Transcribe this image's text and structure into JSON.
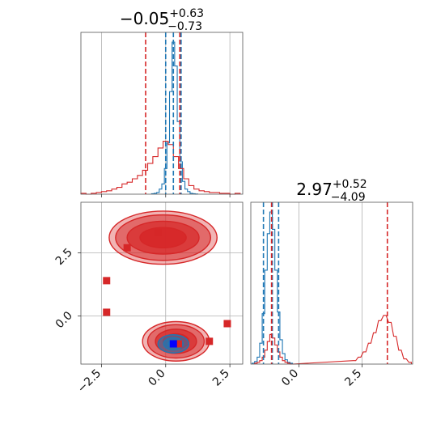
{
  "figure": {
    "panel_titles": [
      {
        "base": "−0.05",
        "sup": "+0.63",
        "sub": "−0.73"
      },
      {
        "base": "2.97",
        "sup": "+0.52",
        "sub": "−4.09"
      }
    ]
  },
  "chart_data": [
    {
      "type": "histogram",
      "panel": "marginal x",
      "xlim": [
        -3.3,
        3.0
      ],
      "xticks": [
        -2.5,
        0.0,
        2.5
      ],
      "title": "−0.05^{+0.63}_{−0.73}",
      "series": [
        {
          "name": "",
          "color": "#1f77b4",
          "bin_centers": [
            -0.5,
            -0.4,
            -0.3,
            -0.2,
            -0.1,
            0.0,
            0.1,
            0.2,
            0.3,
            0.4,
            0.5,
            0.6,
            0.7,
            0.8,
            0.9,
            1.0,
            1.1,
            1.2
          ],
          "heights": [
            0.5,
            1,
            2,
            6,
            12,
            30,
            60,
            120,
            178,
            150,
            85,
            38,
            15,
            6,
            3,
            1,
            0.5,
            0.2
          ],
          "quantile_lines": [
            0.0,
            0.3,
            0.6
          ]
        },
        {
          "name": "",
          "color": "#d62728",
          "bin_centers": [
            -3.2,
            -3.0,
            -2.8,
            -2.6,
            -2.4,
            -2.2,
            -2.0,
            -1.8,
            -1.6,
            -1.4,
            -1.2,
            -1.0,
            -0.8,
            -0.6,
            -0.4,
            -0.2,
            0.0,
            0.2,
            0.4,
            0.6,
            0.8,
            1.0,
            1.2,
            1.4,
            1.6,
            1.8,
            2.0,
            2.2,
            2.4,
            2.6,
            2.8
          ],
          "heights": [
            1,
            0,
            1,
            2,
            3,
            4,
            6,
            8,
            12,
            14,
            18,
            22,
            28,
            36,
            44,
            54,
            62,
            58,
            44,
            30,
            18,
            10,
            6,
            4,
            3,
            2,
            2,
            1,
            1,
            0,
            1
          ],
          "quantile_lines": [
            -0.78,
            0.55
          ]
        }
      ]
    },
    {
      "type": "histogram",
      "panel": "marginal y",
      "xlim": [
        -1.9,
        4.5
      ],
      "xticks": [
        0.0,
        2.5
      ],
      "title": "2.97^{+0.52}_{−4.09}",
      "series": [
        {
          "name": "",
          "color": "#1f77b4",
          "bin_centers": [
            -1.8,
            -1.7,
            -1.6,
            -1.5,
            -1.4,
            -1.3,
            -1.2,
            -1.1,
            -1.0,
            -0.9,
            -0.8,
            -0.7,
            -0.6,
            -0.5,
            -0.4,
            -0.3
          ],
          "heights": [
            1,
            3,
            8,
            24,
            58,
            108,
            150,
            175,
            155,
            108,
            60,
            28,
            12,
            5,
            2,
            1
          ],
          "quantile_lines": [
            -1.4,
            -1.05,
            -0.8
          ]
        },
        {
          "name": "",
          "color": "#d62728",
          "bin_centers": [
            -1.7,
            -1.6,
            -1.5,
            -1.4,
            -1.3,
            -1.2,
            -1.1,
            -1.0,
            -0.9,
            -0.8,
            -0.7,
            -0.6,
            -0.5,
            -0.4,
            -0.3,
            2.2,
            2.4,
            2.6,
            2.8,
            3.0,
            3.2,
            3.4,
            3.6,
            3.8,
            4.0,
            4.2,
            4.4
          ],
          "heights": [
            1,
            2,
            4,
            8,
            16,
            26,
            34,
            30,
            22,
            14,
            8,
            4,
            2,
            1,
            0,
            4,
            8,
            14,
            24,
            36,
            50,
            56,
            48,
            32,
            16,
            6,
            2
          ],
          "quantile_lines": [
            -1.08,
            3.5
          ]
        }
      ]
    },
    {
      "type": "scatter",
      "panel": "joint",
      "xlim": [
        -3.3,
        3.0
      ],
      "ylim": [
        -1.9,
        4.5
      ],
      "xticks": [
        -2.5,
        0.0,
        2.5
      ],
      "yticks": [
        0.0,
        2.5
      ],
      "series": [
        {
          "name": "",
          "color": "#d62728",
          "marker": "square",
          "points": [
            [
              -1.5,
              2.7
            ],
            [
              -0.3,
              3.3
            ],
            [
              -2.3,
              1.4
            ],
            [
              -2.3,
              0.15
            ],
            [
              0.5,
              -1.1
            ],
            [
              1.7,
              -1.0
            ],
            [
              2.4,
              -0.3
            ]
          ]
        },
        {
          "name": "",
          "color": "#0000ff",
          "marker": "square",
          "points": [
            [
              0.3,
              -1.1
            ]
          ]
        }
      ],
      "density_contours": [
        {
          "color": "#d62728",
          "center": [
            -0.1,
            3.1
          ],
          "radii_x": [
            2.1,
            1.85,
            1.4,
            0.9
          ],
          "radii_y": [
            1.05,
            0.9,
            0.65,
            0.4
          ]
        },
        {
          "color": "#d62728",
          "center": [
            0.4,
            -1.0
          ],
          "radii_x": [
            1.3,
            1.1,
            0.8,
            0.5
          ],
          "radii_y": [
            0.78,
            0.66,
            0.48,
            0.3
          ]
        },
        {
          "color": "#1f77b4",
          "center": [
            0.3,
            -1.1
          ],
          "radii_x": [
            0.6,
            0.38,
            0.2
          ],
          "radii_y": [
            0.36,
            0.24,
            0.13
          ]
        }
      ]
    }
  ]
}
